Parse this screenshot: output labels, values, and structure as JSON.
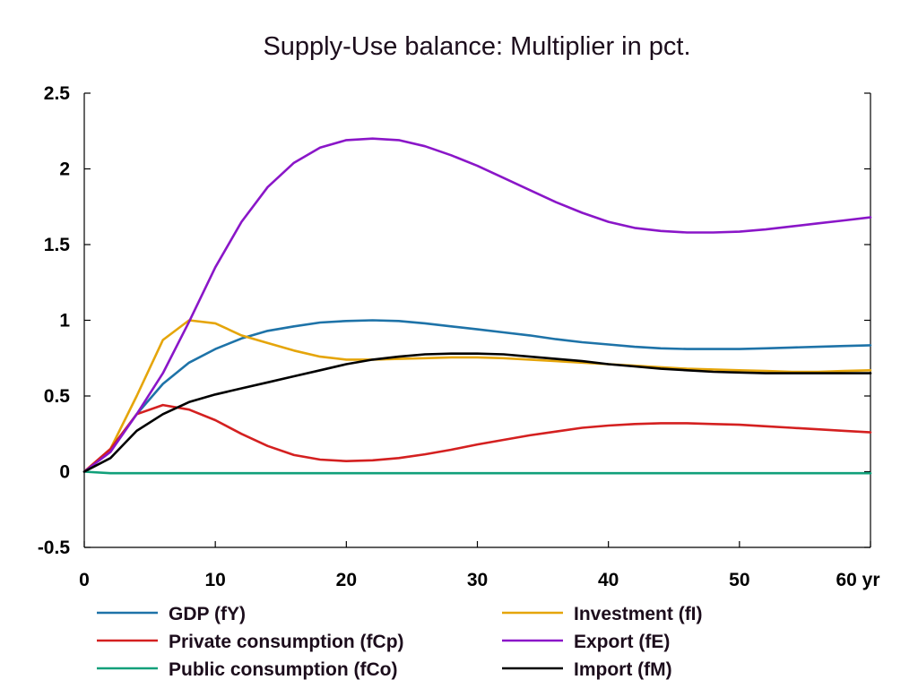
{
  "chart_data": {
    "type": "line",
    "title": "Supply-Use balance: Multiplier in pct.",
    "xlabel": "",
    "ylabel": "",
    "xlim": [
      0,
      60
    ],
    "ylim": [
      -0.5,
      2.5
    ],
    "x_ticks": [
      "0",
      "10",
      "20",
      "30",
      "40",
      "50",
      "60 yr"
    ],
    "x_tick_values": [
      0,
      10,
      20,
      30,
      40,
      50,
      60
    ],
    "y_ticks": [
      "-0.5",
      "0",
      "0.5",
      "1",
      "1.5",
      "2",
      "2.5"
    ],
    "y_tick_values": [
      -0.5,
      0,
      0.5,
      1,
      1.5,
      2,
      2.5
    ],
    "grid": false,
    "legend_position": "bottom",
    "x": [
      0,
      2,
      4,
      6,
      8,
      10,
      12,
      14,
      16,
      18,
      20,
      22,
      24,
      26,
      28,
      30,
      32,
      34,
      36,
      38,
      40,
      42,
      44,
      46,
      48,
      50,
      52,
      54,
      56,
      58,
      60
    ],
    "series": [
      {
        "name": "GDP (fY)",
        "color": "#1e73a8",
        "values": [
          0,
          0.14,
          0.38,
          0.58,
          0.72,
          0.81,
          0.88,
          0.93,
          0.96,
          0.985,
          0.995,
          1.0,
          0.995,
          0.98,
          0.96,
          0.94,
          0.92,
          0.9,
          0.875,
          0.855,
          0.84,
          0.825,
          0.815,
          0.81,
          0.81,
          0.81,
          0.815,
          0.82,
          0.825,
          0.83,
          0.835
        ]
      },
      {
        "name": "Investment (fI)",
        "color": "#e5a50a",
        "values": [
          0,
          0.15,
          0.5,
          0.87,
          1.0,
          0.98,
          0.9,
          0.85,
          0.8,
          0.76,
          0.74,
          0.74,
          0.745,
          0.75,
          0.755,
          0.755,
          0.75,
          0.74,
          0.73,
          0.72,
          0.71,
          0.7,
          0.69,
          0.68,
          0.675,
          0.67,
          0.665,
          0.66,
          0.66,
          0.665,
          0.67
        ]
      },
      {
        "name": "Private consumption (fCp)",
        "color": "#d42020",
        "values": [
          0,
          0.15,
          0.38,
          0.44,
          0.41,
          0.34,
          0.25,
          0.17,
          0.11,
          0.08,
          0.07,
          0.075,
          0.09,
          0.115,
          0.145,
          0.18,
          0.21,
          0.24,
          0.265,
          0.29,
          0.305,
          0.315,
          0.32,
          0.32,
          0.315,
          0.31,
          0.3,
          0.29,
          0.28,
          0.27,
          0.26
        ]
      },
      {
        "name": "Export (fE)",
        "color": "#8a16c8",
        "values": [
          0,
          0.13,
          0.38,
          0.65,
          0.99,
          1.35,
          1.65,
          1.88,
          2.04,
          2.14,
          2.19,
          2.2,
          2.19,
          2.15,
          2.09,
          2.02,
          1.94,
          1.86,
          1.78,
          1.71,
          1.65,
          1.61,
          1.59,
          1.58,
          1.58,
          1.585,
          1.6,
          1.62,
          1.64,
          1.66,
          1.68
        ]
      },
      {
        "name": "Public consumption (fCo)",
        "color": "#11a07a",
        "values": [
          0,
          -0.01,
          -0.01,
          -0.01,
          -0.01,
          -0.01,
          -0.01,
          -0.01,
          -0.01,
          -0.01,
          -0.01,
          -0.01,
          -0.01,
          -0.01,
          -0.01,
          -0.01,
          -0.01,
          -0.01,
          -0.01,
          -0.01,
          -0.01,
          -0.01,
          -0.01,
          -0.01,
          -0.01,
          -0.01,
          -0.01,
          -0.01,
          -0.01,
          -0.01,
          -0.01
        ]
      },
      {
        "name": "Import (fM)",
        "color": "#000000",
        "values": [
          0,
          0.09,
          0.27,
          0.38,
          0.46,
          0.51,
          0.55,
          0.59,
          0.63,
          0.67,
          0.71,
          0.74,
          0.76,
          0.775,
          0.78,
          0.78,
          0.775,
          0.76,
          0.745,
          0.73,
          0.71,
          0.695,
          0.68,
          0.67,
          0.66,
          0.655,
          0.65,
          0.65,
          0.65,
          0.65,
          0.65
        ]
      }
    ],
    "legend": [
      {
        "label": "GDP (fY)",
        "color": "#1e73a8"
      },
      {
        "label": "Investment (fI)",
        "color": "#e5a50a"
      },
      {
        "label": "Private consumption (fCp)",
        "color": "#d42020"
      },
      {
        "label": "Export (fE)",
        "color": "#8a16c8"
      },
      {
        "label": "Public consumption (fCo)",
        "color": "#11a07a"
      },
      {
        "label": "Import (fM)",
        "color": "#000000"
      }
    ]
  }
}
